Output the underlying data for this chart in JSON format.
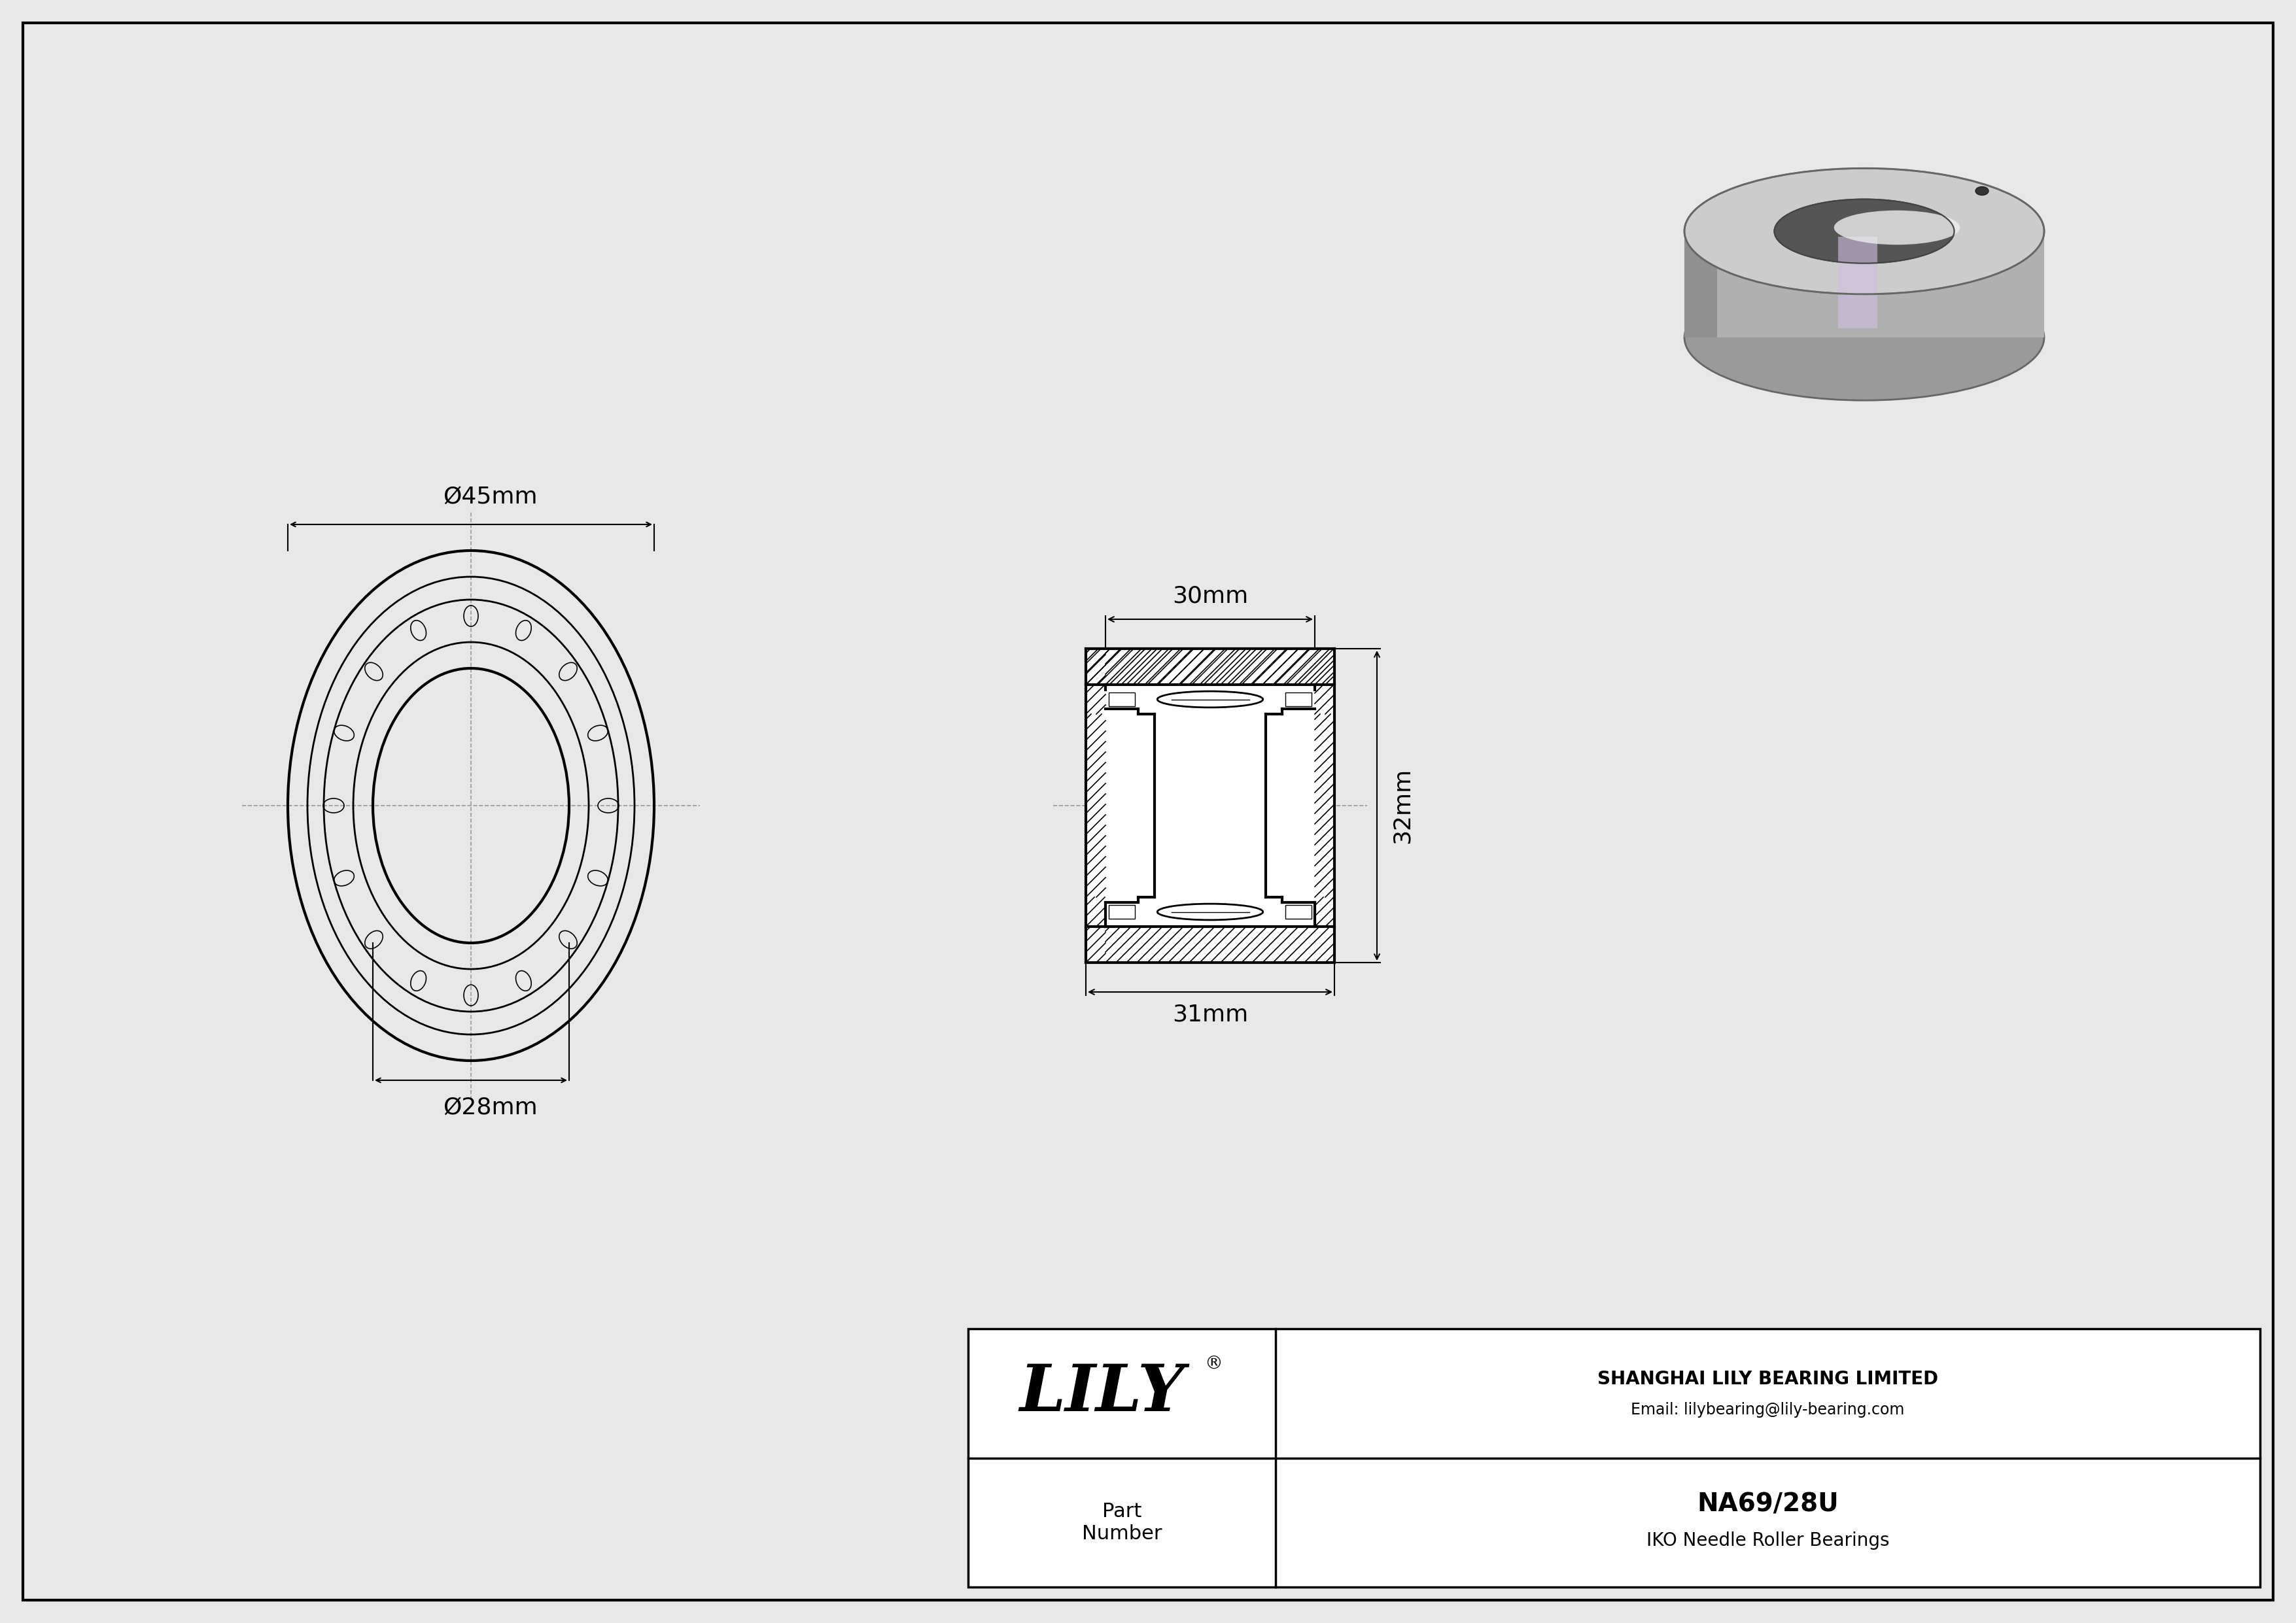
{
  "bg_color": "#e8e8e8",
  "white": "#ffffff",
  "border_color": "#000000",
  "line_color": "#000000",
  "dim_color": "#000000",
  "cl_color": "#999999",
  "company": "SHANGHAI LILY BEARING LIMITED",
  "email": "Email: lilybearing@lily-bearing.com",
  "part_label": "Part\nNumber",
  "part_number": "NA69/28U",
  "part_type": "IKO Needle Roller Bearings",
  "brand": "LILY",
  "dim_od": "Ø45mm",
  "dim_id": "Ø28mm",
  "dim_width_top": "30mm",
  "dim_width_bottom": "31mm",
  "dim_height": "32mm",
  "fig_w": 35.1,
  "fig_h": 24.82
}
